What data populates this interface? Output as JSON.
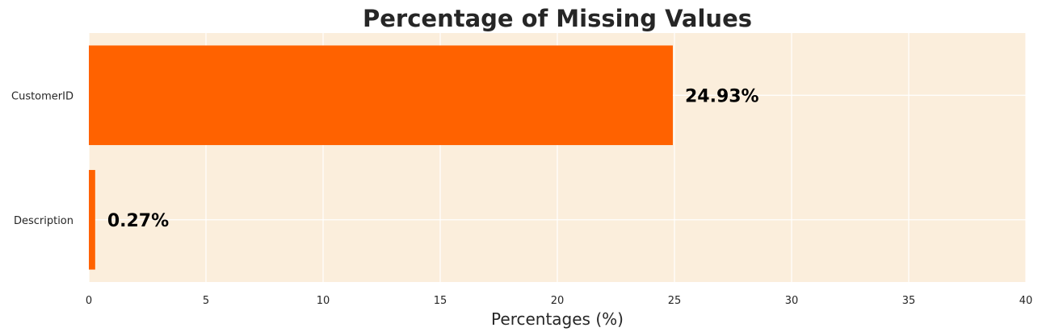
{
  "chart_data": {
    "type": "bar",
    "orientation": "horizontal",
    "title": "Percentage of Missing Values",
    "xlabel": "Percentages (%)",
    "ylabel": "",
    "categories": [
      "CustomerID",
      "Description"
    ],
    "values": [
      24.93,
      0.27
    ],
    "data_labels": [
      "24.93%",
      "0.27%"
    ],
    "xlim": [
      0,
      40
    ],
    "xticks": [
      0,
      5,
      10,
      15,
      20,
      25,
      30,
      35,
      40
    ],
    "grid": true,
    "colors": {
      "bar": "#ff6200",
      "plot_background": "#fbeedc",
      "grid": "#ffffff",
      "text": "#262626"
    }
  }
}
